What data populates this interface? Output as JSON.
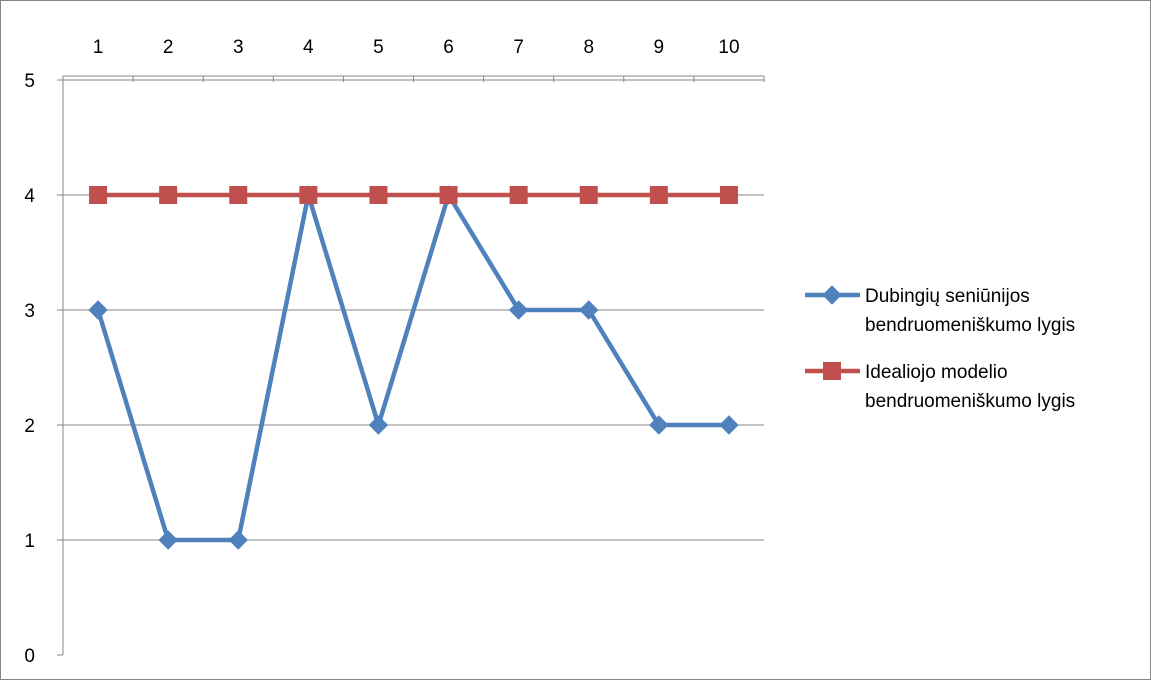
{
  "chart_data": {
    "type": "line",
    "x": [
      1,
      2,
      3,
      4,
      5,
      6,
      7,
      8,
      9,
      10
    ],
    "x_tick_labels": [
      "1",
      "2",
      "3",
      "4",
      "5",
      "6",
      "7",
      "8",
      "9",
      "10"
    ],
    "x_axis_position": "top",
    "y_ticks": [
      "0",
      "1",
      "2",
      "3",
      "4",
      "5"
    ],
    "ylim": [
      0,
      5
    ],
    "grid": "horizontal",
    "legend_position": "right",
    "series": [
      {
        "name_lines": [
          "Dubingių seniūnijos",
          "bendruomeniškumo lygis"
        ],
        "values": [
          3,
          1,
          1,
          4,
          2,
          4,
          3,
          3,
          2,
          2
        ],
        "color": "#4F81BD",
        "marker": "diamond"
      },
      {
        "name_lines": [
          "Idealiojo modelio",
          "bendruomeniškumo lygis"
        ],
        "values": [
          4,
          4,
          4,
          4,
          4,
          4,
          4,
          4,
          4,
          4
        ],
        "color": "#C0504D",
        "marker": "square"
      }
    ]
  }
}
